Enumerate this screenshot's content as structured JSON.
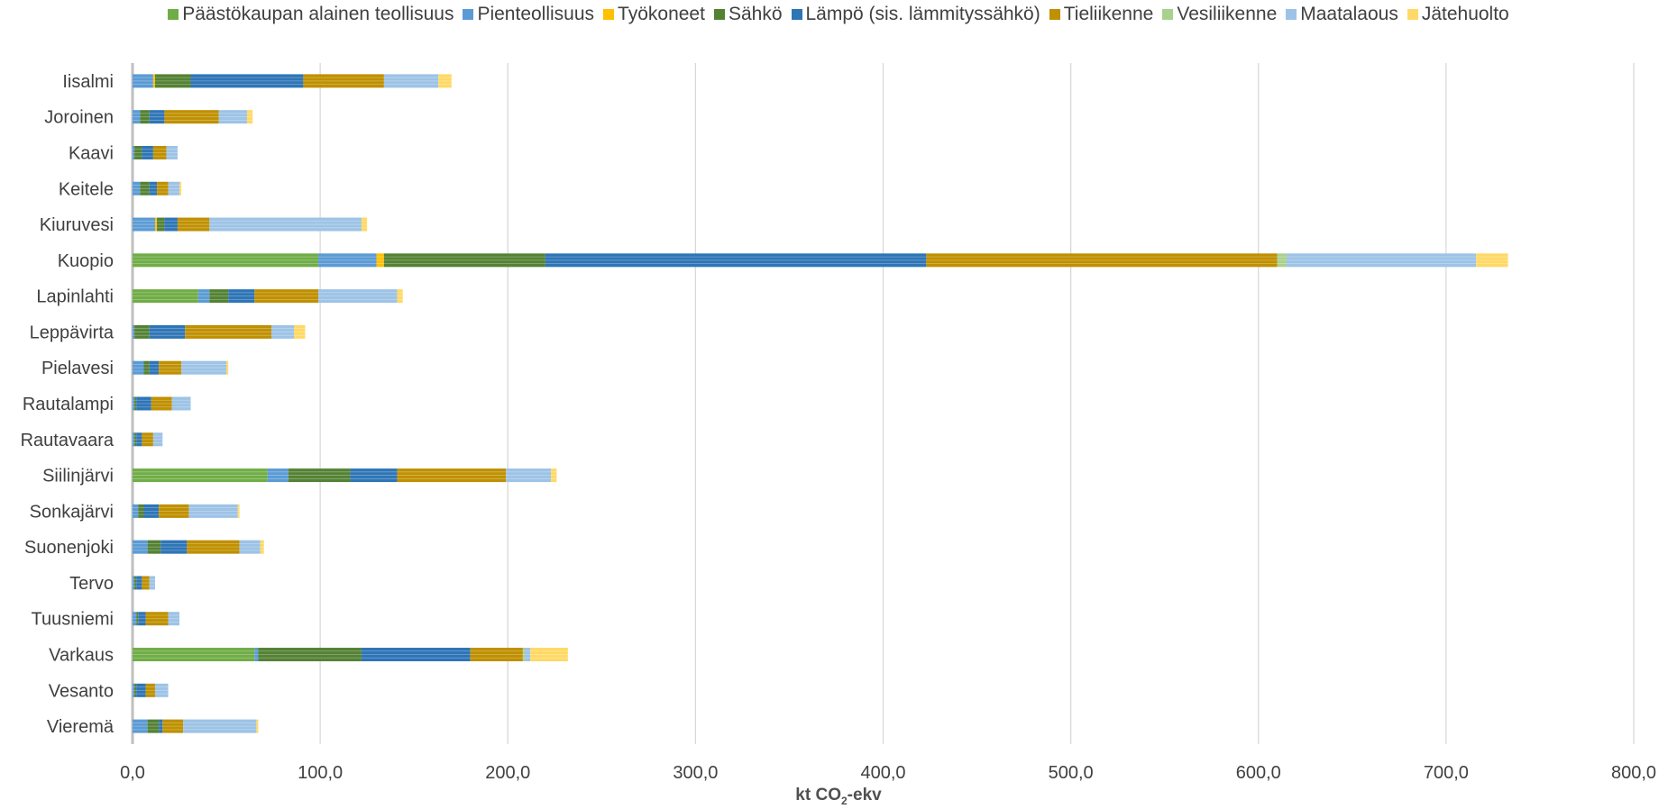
{
  "chart_data": {
    "type": "bar",
    "orientation": "horizontal",
    "stacked": true,
    "title": "",
    "xlabel_main": "kt CO",
    "xlabel_sub": "2",
    "xlabel_rest": "-ekv",
    "ylabel": "",
    "xlim": [
      0,
      800
    ],
    "x_ticks": [
      "0,0",
      "100,0",
      "200,0",
      "300,0",
      "400,0",
      "500,0",
      "600,0",
      "700,0",
      "800,0"
    ],
    "grid": "vertical",
    "legend_position": "top",
    "categories": [
      "Iisalmi",
      "Joroinen",
      "Kaavi",
      "Keitele",
      "Kiuruvesi",
      "Kuopio",
      "Lapinlahti",
      "Leppävirta",
      "Pielavesi",
      "Rautalampi",
      "Rautavaara",
      "Siilinjärvi",
      "Sonkajärvi",
      "Suonenjoki",
      "Tervo",
      "Tuusniemi",
      "Varkaus",
      "Vesanto",
      "Vieremä"
    ],
    "series": [
      {
        "name": "Päästökaupan alainen teollisuus",
        "color": "#70ad47",
        "values": [
          0,
          0,
          0,
          0,
          0,
          99,
          35,
          0,
          0,
          0,
          0,
          72,
          0,
          0,
          0,
          0,
          65,
          0,
          0
        ]
      },
      {
        "name": "Pienteollisuus",
        "color": "#5b9bd5",
        "values": [
          11,
          4,
          1,
          4,
          12,
          31,
          6,
          1,
          6,
          1,
          1,
          11,
          3,
          8,
          1,
          2,
          2,
          1,
          8
        ]
      },
      {
        "name": "Työkoneet",
        "color": "#ffc000",
        "values": [
          1,
          0,
          0,
          0,
          1,
          4,
          0,
          0,
          0,
          0,
          0,
          0,
          0,
          0,
          0,
          0,
          0,
          0,
          0
        ]
      },
      {
        "name": "Sähkö",
        "color": "#548235",
        "values": [
          19,
          5,
          4,
          5,
          4,
          86,
          10,
          8,
          3,
          1,
          1,
          33,
          3,
          7,
          1,
          1,
          55,
          1,
          6
        ]
      },
      {
        "name": "Lämpö (sis. lämmityssähkö)",
        "color": "#2e75b6",
        "values": [
          60,
          8,
          6,
          4,
          7,
          203,
          14,
          19,
          5,
          8,
          3,
          25,
          8,
          14,
          3,
          4,
          58,
          5,
          2
        ]
      },
      {
        "name": "Tieliikenne",
        "color": "#bf9000",
        "values": [
          43,
          29,
          7,
          6,
          17,
          187,
          34,
          46,
          12,
          11,
          6,
          58,
          16,
          28,
          4,
          12,
          28,
          5,
          11
        ]
      },
      {
        "name": "Vesiliikenne",
        "color": "#a9d18e",
        "values": [
          0,
          0,
          0,
          0,
          0,
          5,
          0,
          0,
          0,
          0,
          0,
          0,
          0,
          0,
          0,
          0,
          1,
          0,
          0
        ]
      },
      {
        "name": "Maatalaous",
        "color": "#9dc3e6",
        "values": [
          29,
          15,
          6,
          6,
          81,
          101,
          42,
          12,
          24,
          10,
          5,
          24,
          26,
          11,
          3,
          6,
          3,
          7,
          39
        ]
      },
      {
        "name": "Jätehuolto",
        "color": "#ffd966",
        "values": [
          7,
          3,
          0,
          1,
          3,
          17,
          3,
          6,
          1,
          0,
          0,
          3,
          1,
          2,
          0,
          0,
          20,
          0,
          1
        ]
      }
    ]
  }
}
